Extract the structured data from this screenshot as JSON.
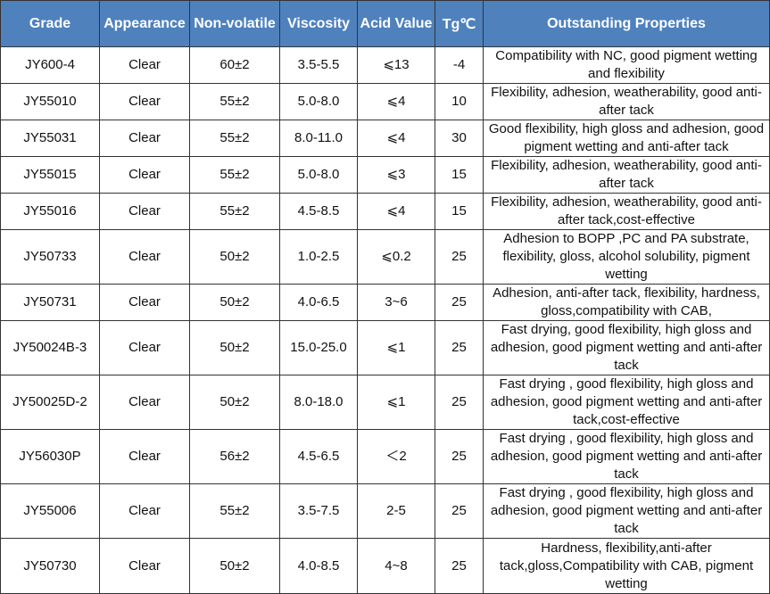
{
  "table": {
    "header": [
      "Grade",
      "Appearance",
      "Non-volatile",
      "Viscosity",
      "Acid Value",
      "Tg℃",
      "Outstanding Properties"
    ],
    "rows": [
      [
        "JY600-4",
        "Clear",
        "60±2",
        "3.5-5.5",
        "⩽13",
        "-4",
        "Compatibility with NC, good pigment wetting and flexibility"
      ],
      [
        "JY55010",
        "Clear",
        "55±2",
        "5.0-8.0",
        "⩽4",
        "10",
        "Flexibility, adhesion, weatherability, good anti-after tack"
      ],
      [
        "JY55031",
        "Clear",
        "55±2",
        "8.0-11.0",
        "⩽4",
        "30",
        "Good flexibility, high gloss and adhesion, good pigment wetting and anti-after tack"
      ],
      [
        "JY55015",
        "Clear",
        "55±2",
        "5.0-8.0",
        "⩽3",
        "15",
        "Flexibility, adhesion, weatherability, good anti-after tack"
      ],
      [
        "JY55016",
        "Clear",
        "55±2",
        "4.5-8.5",
        "⩽4",
        "15",
        "Flexibility, adhesion, weatherability, good anti-after tack,cost-effective"
      ],
      [
        "JY50733",
        "Clear",
        "50±2",
        "1.0-2.5",
        "⩽0.2",
        "25",
        "Adhesion to BOPP ,PC and PA substrate, flexibility, gloss, alcohol solubility, pigment wetting"
      ],
      [
        "JY50731",
        "Clear",
        "50±2",
        "4.0-6.5",
        "3~6",
        "25",
        "Adhesion,  anti-after tack, flexibility, hardness, gloss,compatibility with CAB,"
      ],
      [
        "JY50024B-3",
        "Clear",
        "50±2",
        "15.0-25.0",
        "⩽1",
        "25",
        "Fast drying, good flexibility, high gloss and adhesion, good pigment wetting and anti-after tack"
      ],
      [
        "JY50025D-2",
        "Clear",
        "50±2",
        "8.0-18.0",
        "⩽1",
        "25",
        "Fast drying , good flexibility, high gloss and adhesion, good pigment wetting and anti-after tack,cost-effective"
      ],
      [
        "JY56030P",
        "Clear",
        "56±2",
        "4.5-6.5",
        "＜2",
        "25",
        "Fast drying , good flexibility, high gloss and adhesion, good pigment wetting and anti-after tack"
      ],
      [
        "JY55006",
        "Clear",
        "55±2",
        "3.5-7.5",
        "2-5",
        "25",
        "Fast drying , good flexibility, high gloss and adhesion, good pigment wetting and anti-after tack"
      ],
      [
        "JY50730",
        "Clear",
        "50±2",
        "4.0-8.5",
        "4~8",
        "25",
        "Hardness,  flexibility,anti-after tack,gloss,Compatibility with CAB, pigment wetting"
      ]
    ]
  }
}
